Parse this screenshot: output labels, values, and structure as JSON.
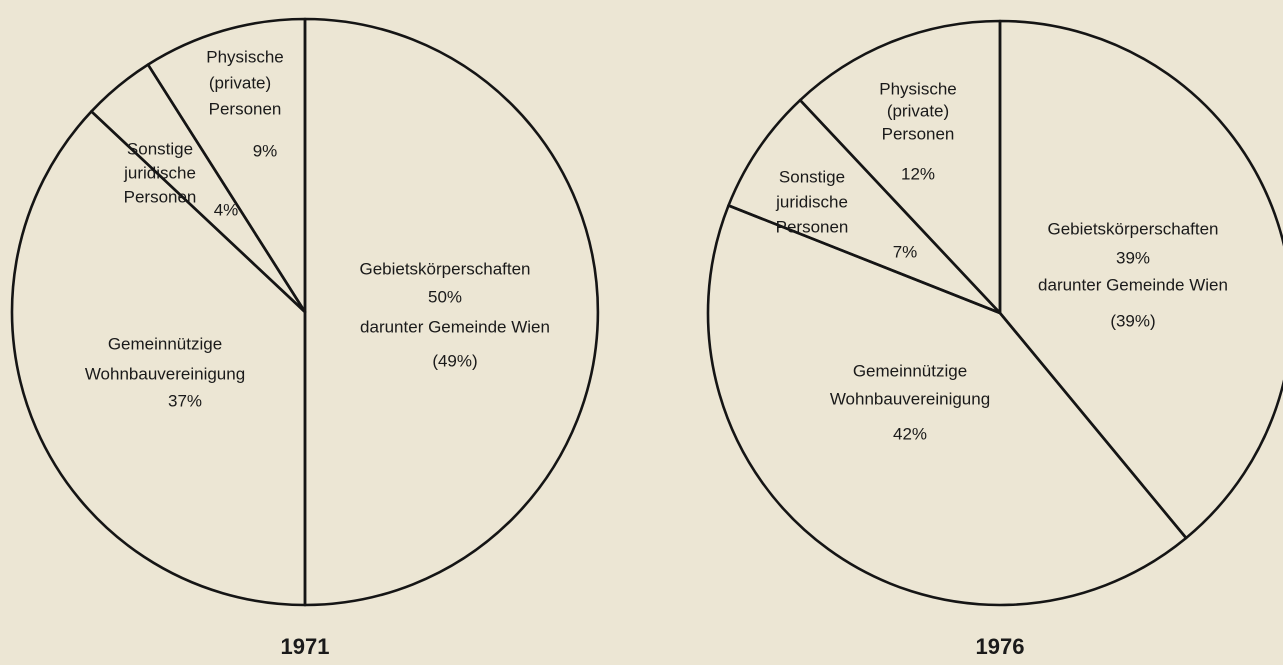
{
  "chart_data": [
    {
      "type": "pie",
      "title": "1971",
      "categories": [
        [
          "Gebietskörperschaften"
        ],
        [
          "Gemeinnützige",
          "Wohnbauvereinigung"
        ],
        [
          "Sonstige",
          "juridische",
          "Personen"
        ],
        [
          "Physische",
          "(private)",
          "Personen"
        ]
      ],
      "values": [
        50,
        37,
        4,
        9
      ],
      "value_labels": [
        "50%",
        "37%",
        "4%",
        "9%"
      ],
      "annotation": [
        "darunter Gemeinde Wien",
        "(49%)"
      ]
    },
    {
      "type": "pie",
      "title": "1976",
      "categories": [
        [
          "Gebietskörperschaften"
        ],
        [
          "Gemeinnützige",
          "Wohnbauvereinigung"
        ],
        [
          "Sonstige",
          "juridische",
          "Personen"
        ],
        [
          "Physische",
          "(private)",
          "Personen"
        ]
      ],
      "values": [
        39,
        42,
        7,
        12
      ],
      "value_labels": [
        "39%",
        "42%",
        "7%",
        "12%"
      ],
      "annotation": [
        "darunter Gemeinde Wien",
        "(39%)"
      ]
    }
  ]
}
